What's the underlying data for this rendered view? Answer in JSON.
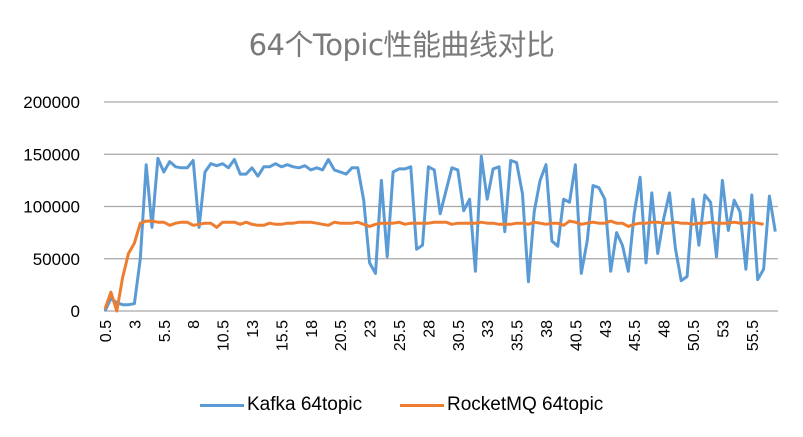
{
  "chart": {
    "title": "64个Topic性能曲线对比",
    "colors": {
      "kafka": "#5b9bd5",
      "rocketmq": "#ed7d31",
      "grid": "#a6a6a6"
    },
    "legend": [
      {
        "label": "Kafka 64topic",
        "color": "#5b9bd5"
      },
      {
        "label": "RocketMQ 64topic",
        "color": "#ed7d31"
      }
    ]
  },
  "chart_data": {
    "type": "line",
    "title": "64个Topic性能曲线对比",
    "xlabel": "",
    "ylabel": "",
    "ylim": [
      0,
      200000
    ],
    "yticks": [
      0,
      50000,
      100000,
      150000,
      200000
    ],
    "xtick_labels": [
      "0.5",
      "3",
      "5.5",
      "8",
      "10.5",
      "13",
      "15.5",
      "18",
      "20.5",
      "23",
      "25.5",
      "28",
      "30.5",
      "33",
      "35.5",
      "38",
      "40.5",
      "43",
      "45.5",
      "48",
      "50.5",
      "53",
      "55.5"
    ],
    "x_start": 0.5,
    "x_step": 0.5,
    "grid": true,
    "legend_position": "bottom",
    "series": [
      {
        "name": "Kafka 64topic",
        "color": "#5b9bd5",
        "values": [
          0,
          12000,
          8000,
          6000,
          6000,
          7000,
          50000,
          140000,
          80000,
          146000,
          133000,
          143000,
          138000,
          137000,
          137000,
          144000,
          80000,
          133000,
          141000,
          139000,
          141000,
          137000,
          145000,
          131000,
          131000,
          137000,
          129000,
          138000,
          138000,
          141000,
          138000,
          140000,
          138000,
          137000,
          139000,
          135000,
          137000,
          135000,
          145000,
          135000,
          133000,
          131000,
          137000,
          137000,
          106000,
          46000,
          36000,
          125000,
          52000,
          133000,
          136000,
          136000,
          138000,
          59000,
          63000,
          138000,
          135000,
          93000,
          115000,
          137000,
          135000,
          96000,
          107000,
          38000,
          148000,
          107000,
          136000,
          138000,
          76000,
          144000,
          142000,
          112000,
          28000,
          95000,
          125000,
          140000,
          67000,
          62000,
          107000,
          104000,
          140000,
          36000,
          67000,
          120000,
          118000,
          107000,
          38000,
          75000,
          63000,
          38000,
          93000,
          128000,
          46000,
          113000,
          55000,
          88000,
          113000,
          60000,
          29000,
          33000,
          107000,
          63000,
          111000,
          104000,
          52000,
          125000,
          77000,
          106000,
          95000,
          40000,
          111000,
          30000,
          40000,
          110000,
          76000
        ]
      },
      {
        "name": "RocketMQ 64topic",
        "color": "#ed7d31",
        "values": [
          2000,
          18000,
          0,
          32000,
          55000,
          65000,
          84000,
          86000,
          86000,
          85000,
          85000,
          82000,
          84000,
          85000,
          85000,
          82000,
          83000,
          84000,
          84000,
          80000,
          85000,
          85000,
          85000,
          83000,
          85000,
          83000,
          82000,
          82000,
          84000,
          83000,
          83000,
          84000,
          84000,
          85000,
          85000,
          85000,
          84000,
          83000,
          82000,
          85000,
          84000,
          84000,
          84000,
          85000,
          83000,
          81000,
          83000,
          84000,
          84000,
          84000,
          85000,
          83000,
          84000,
          84000,
          84000,
          84000,
          85000,
          85000,
          85000,
          83000,
          84000,
          84000,
          84000,
          84000,
          85000,
          84000,
          84000,
          83000,
          83000,
          83000,
          84000,
          84000,
          83000,
          85000,
          84000,
          83000,
          84000,
          84000,
          82000,
          86000,
          85000,
          83000,
          84000,
          85000,
          84000,
          84000,
          86000,
          84000,
          84000,
          81000,
          83000,
          84000,
          84000,
          85000,
          85000,
          84000,
          84000,
          85000,
          84000,
          84000,
          83000,
          84000,
          84000,
          85000,
          84000,
          84000,
          84000,
          85000,
          84000,
          84000,
          85000,
          84000,
          83000
        ]
      }
    ]
  }
}
